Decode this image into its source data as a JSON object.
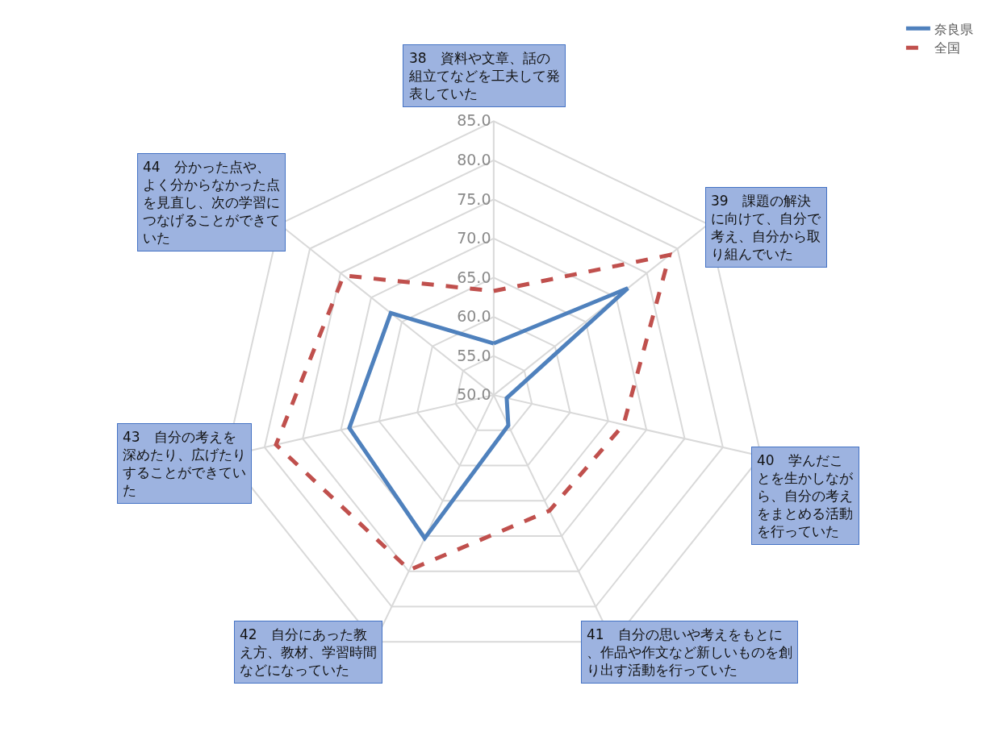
{
  "chart_data": {
    "type": "radar",
    "categories": [
      "38　資料や文章、話の組立てなどを工夫して発表していた",
      "39　課題の解決に向けて、自分で考え、自分から取り組んでいた",
      "40　学んだことを生かしながら、自分の考えをまとめる活動を行っていた",
      "41　自分の思いや考えをもとに、作品や作文など新しいものを創り出す活動を行っていた",
      "42　自分にあった教え方、教材、学習時間などになっていた",
      "43　自分の考えを深めたり、広げたりすることができていた",
      "44　分かった点や、よく分からなかった点を見直し、次の学習につなげることができていた"
    ],
    "series": [
      {
        "name": "奈良県",
        "color": "#4f81bd",
        "line_style": "solid",
        "values": [
          56.6,
          71.9,
          51.7,
          54.3,
          70.3,
          68.9,
          66.8
        ]
      },
      {
        "name": "全国",
        "color": "#c0504d",
        "line_style": "dashed",
        "values": [
          63.3,
          78.7,
          67,
          66.4,
          74.8,
          78.5,
          74.5
        ]
      }
    ],
    "ylim": [
      50,
      85
    ],
    "yticks": [
      {
        "value": 50,
        "label": "50.0"
      },
      {
        "value": 55,
        "label": "55.0"
      },
      {
        "value": 60,
        "label": "60.0"
      },
      {
        "value": 65,
        "label": "65.0"
      },
      {
        "value": 70,
        "label": "70.0"
      },
      {
        "value": 75,
        "label": "75.0"
      },
      {
        "value": 80,
        "label": "80.0"
      },
      {
        "value": 85,
        "label": "85.0"
      }
    ],
    "grid": true,
    "legend": "top right",
    "marker": "none"
  }
}
